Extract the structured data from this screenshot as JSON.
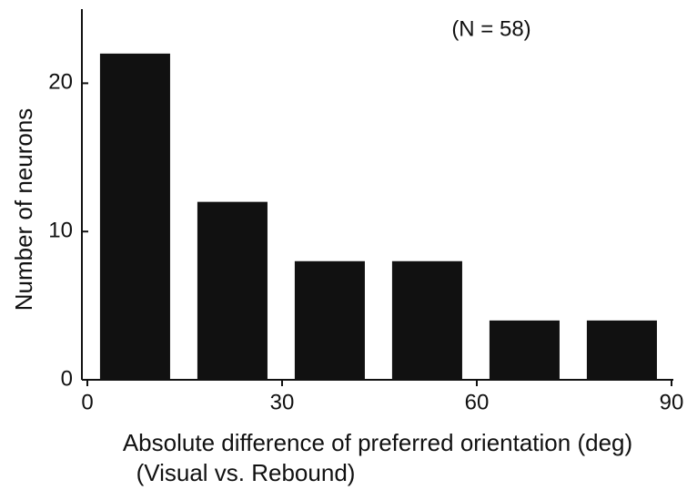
{
  "chart_data": {
    "type": "histogram",
    "annotation": "(N = 58)",
    "xlabel": [
      "Absolute difference of preferred orientation (deg)",
      "(Visual vs. Rebound)"
    ],
    "ylabel": "Number of neurons",
    "bins": [
      0,
      15,
      30,
      45,
      60,
      75,
      90
    ],
    "values": [
      22,
      12,
      8,
      8,
      4,
      4
    ],
    "color": "#111111",
    "xlim": [
      0,
      90
    ],
    "xticks": [
      0,
      30,
      60,
      90
    ],
    "ylim": [
      0,
      25
    ],
    "yticks": [
      0,
      10,
      20
    ]
  }
}
